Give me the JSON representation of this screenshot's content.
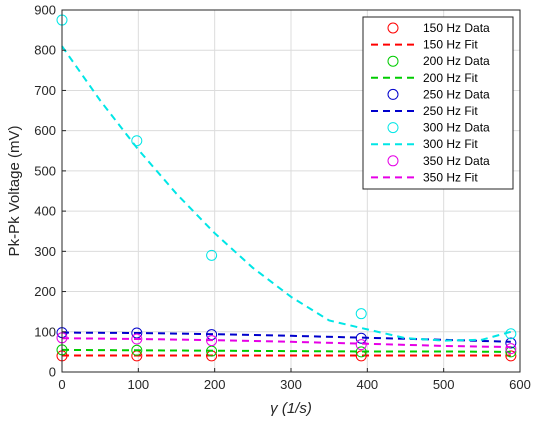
{
  "chart_data": {
    "type": "scatter",
    "xlabel": "γ (1/s)",
    "ylabel": "Pk-Pk Voltage (mV)",
    "xlim": [
      0,
      600
    ],
    "ylim": [
      0,
      900
    ],
    "xticks": [
      "0",
      "100",
      "200",
      "300",
      "400",
      "500",
      "600"
    ],
    "yticks": [
      "0",
      "100",
      "200",
      "300",
      "400",
      "500",
      "600",
      "700",
      "800",
      "900"
    ],
    "grid": true,
    "legend_position": "top-right",
    "series": [
      {
        "name": "150 Hz Data",
        "kind": "markers",
        "color": "#ff0000",
        "x": [
          0,
          98,
          196,
          392,
          588
        ],
        "y": [
          40,
          40,
          40,
          40,
          40
        ]
      },
      {
        "name": "150 Hz Fit",
        "kind": "line",
        "color": "#ff0000",
        "x": [
          0,
          100,
          200,
          300,
          400,
          500,
          588
        ],
        "y": [
          41,
          41,
          41,
          41,
          41,
          41,
          41
        ]
      },
      {
        "name": "200 Hz Data",
        "kind": "markers",
        "color": "#00cc00",
        "x": [
          0,
          98,
          196,
          392,
          588
        ],
        "y": [
          55,
          54,
          52,
          50,
          50
        ]
      },
      {
        "name": "200 Hz Fit",
        "kind": "line",
        "color": "#00cc00",
        "x": [
          0,
          100,
          200,
          300,
          400,
          500,
          588
        ],
        "y": [
          55,
          54,
          53,
          52,
          51,
          51,
          50
        ]
      },
      {
        "name": "250 Hz Data",
        "kind": "markers",
        "color": "#0000cc",
        "x": [
          0,
          98,
          196,
          392,
          588
        ],
        "y": [
          98,
          97,
          93,
          84,
          72
        ]
      },
      {
        "name": "250 Hz Fit",
        "kind": "line",
        "color": "#0000cc",
        "x": [
          0,
          100,
          200,
          300,
          400,
          500,
          588
        ],
        "y": [
          98,
          97,
          94,
          90,
          85,
          80,
          75
        ]
      },
      {
        "name": "300 Hz Data",
        "kind": "markers",
        "color": "#00e6e6",
        "x": [
          0,
          98,
          196,
          392,
          588
        ],
        "y": [
          875,
          575,
          290,
          145,
          95
        ]
      },
      {
        "name": "300 Hz Fit",
        "kind": "line",
        "color": "#00e6e6",
        "x": [
          0,
          50,
          100,
          150,
          200,
          250,
          300,
          350,
          400,
          450,
          500,
          550,
          588
        ],
        "y": [
          810,
          675,
          553,
          443,
          345,
          259,
          187,
          128,
          106,
          84,
          78,
          80,
          100
        ]
      },
      {
        "name": "350 Hz Data",
        "kind": "markers",
        "color": "#e600e6",
        "x": [
          0,
          98,
          196,
          392,
          588
        ],
        "y": [
          85,
          82,
          78,
          68,
          58
        ]
      },
      {
        "name": "350 Hz Fit",
        "kind": "line",
        "color": "#e600e6",
        "x": [
          0,
          100,
          200,
          300,
          400,
          500,
          588
        ],
        "y": [
          84,
          82,
          79,
          75,
          70,
          65,
          62
        ]
      }
    ]
  }
}
